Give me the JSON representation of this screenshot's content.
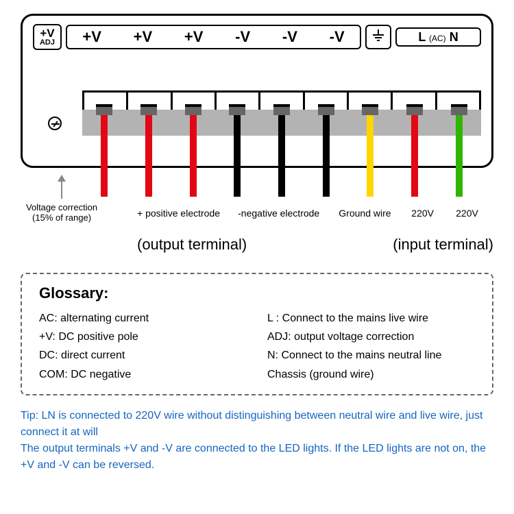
{
  "labels": {
    "adj_top": "+V",
    "adj_sub": "ADJ",
    "v_terminals": [
      "+V",
      "+V",
      "+V",
      "-V",
      "-V",
      "-V"
    ],
    "gnd_symbol": "⏚",
    "ac_l": "L",
    "ac_sub": "(AC)",
    "ac_n": "N"
  },
  "wires": [
    {
      "color": "#e30613"
    },
    {
      "color": "#e30613"
    },
    {
      "color": "#e30613"
    },
    {
      "color": "#000000"
    },
    {
      "color": "#000000"
    },
    {
      "color": "#000000"
    },
    {
      "color": "#ffd500"
    },
    {
      "color": "#e30613"
    },
    {
      "color": "#2fb400"
    }
  ],
  "arrow": {
    "line1": "Voltage correction",
    "line2": "(15% of range)"
  },
  "annotations": {
    "pos": "+ positive electrode",
    "neg": "-negative electrode",
    "gnd": "Ground wire",
    "l": "220V",
    "n": "220V"
  },
  "sections": {
    "out": "(output terminal)",
    "in": "(input terminal)"
  },
  "glossary": {
    "title": "Glossary:",
    "left": [
      "AC: alternating current",
      "+V: DC positive pole",
      "DC: direct current",
      "COM: DC negative"
    ],
    "right": [
      "L : Connect to the mains live wire",
      "ADJ: output voltage correction",
      "N: Connect to the mains neutral line",
      "Chassis (ground wire)"
    ]
  },
  "tip": {
    "color": "#1565c0",
    "text": "Tip: LN is connected to 220V wire without distinguishing between neutral wire and live wire, just connect it at will\nThe output terminals +V and -V are connected to the LED lights. If the LED lights are not on, the +V and -V can be reversed."
  },
  "screw_color": "#666666",
  "block_color": "#b3b3b3"
}
